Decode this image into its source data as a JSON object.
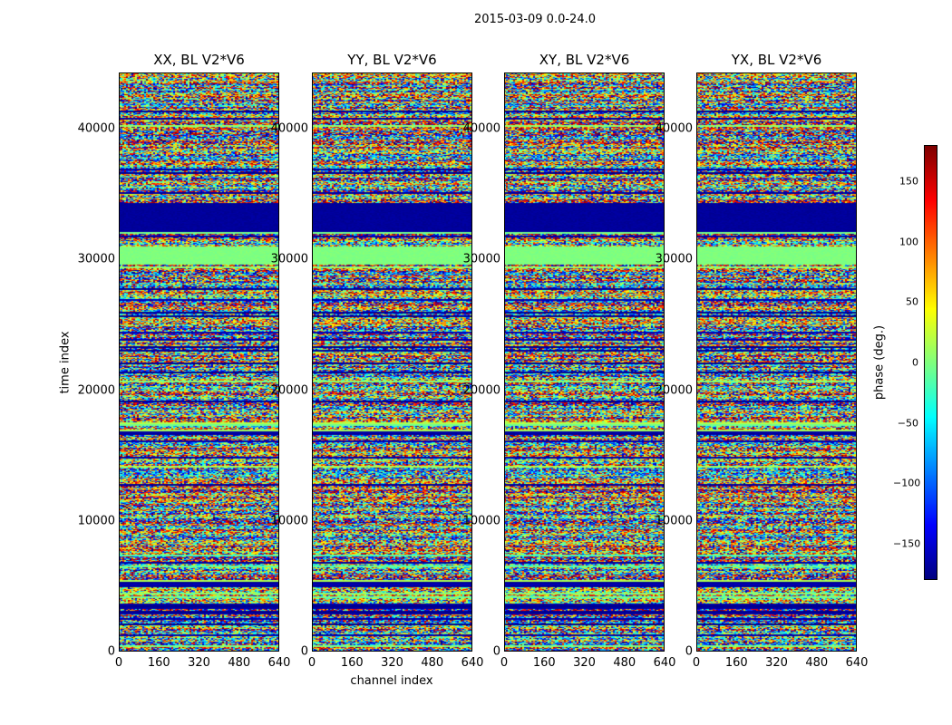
{
  "figure": {
    "suptitle": "2015-03-09 0.0-24.0"
  },
  "chart_data": {
    "type": "heatmap",
    "title": "2015-03-09 0.0-24.0",
    "panels": [
      {
        "title": "XX, BL V2*V6"
      },
      {
        "title": "YY, BL V2*V6"
      },
      {
        "title": "XY, BL V2*V6"
      },
      {
        "title": "YX, BL V2*V6"
      }
    ],
    "xlabel": "channel index",
    "ylabel": "time index",
    "xlim": [
      0,
      640
    ],
    "ylim": [
      0,
      44300
    ],
    "xticks": [
      "0",
      "160",
      "320",
      "480",
      "640"
    ],
    "xtick_values": [
      0,
      160,
      320,
      480,
      640
    ],
    "yticks": [
      "0",
      "10000",
      "20000",
      "30000",
      "40000"
    ],
    "ytick_values": [
      0,
      10000,
      20000,
      30000,
      40000
    ],
    "colormap": "jet",
    "colorbar": {
      "label": "phase (deg.)",
      "range": [
        -180,
        180
      ],
      "ticks": [
        "150",
        "100",
        "50",
        "0",
        "−50",
        "−100",
        "−150"
      ],
      "tick_values": [
        150,
        100,
        50,
        0,
        -50,
        -100,
        -150
      ]
    },
    "features": [
      {
        "from": 29500,
        "to": 31000,
        "phase": 0,
        "note": "coherent band"
      },
      {
        "from": 32000,
        "to": 34200,
        "phase": -170,
        "note": "dark blue band"
      }
    ]
  }
}
